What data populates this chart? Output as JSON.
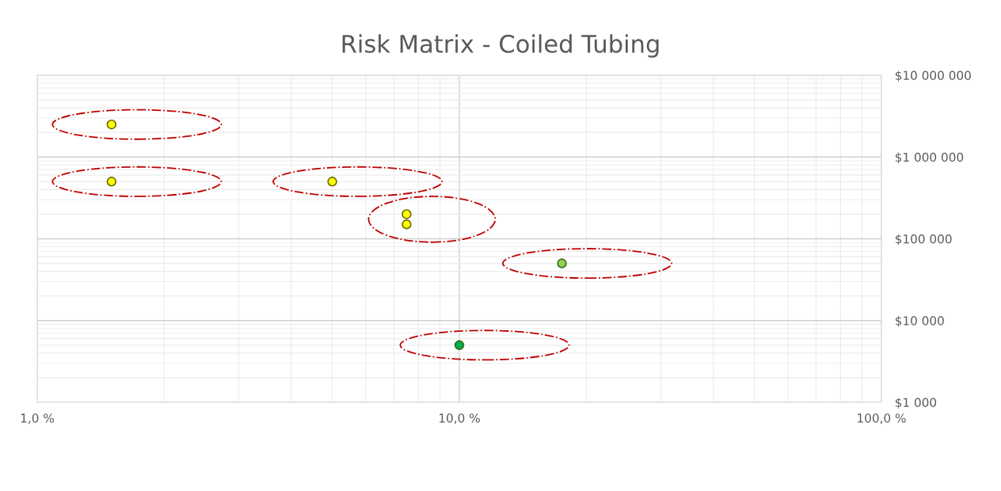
{
  "chart_data": {
    "type": "scatter",
    "title": "Risk Matrix - Coiled Tubing",
    "series": [
      {
        "x": [
          1.5,
          1.5,
          5,
          7.5,
          7.5
        ],
        "values": [
          2500000,
          500000,
          500000,
          200000,
          150000
        ],
        "color": "#ffff00"
      },
      {
        "x": [
          17.5
        ],
        "values": [
          50000
        ],
        "color": "#92d050"
      },
      {
        "x": [
          10
        ],
        "values": [
          5000
        ],
        "color": "#00b050"
      }
    ],
    "log": "xy",
    "xlim": [
      1,
      100
    ],
    "xticks": [
      {
        "value": 1,
        "label": "1,0 %"
      },
      {
        "value": 10,
        "label": "10,0 %"
      },
      {
        "value": 100,
        "label": "100,0 %"
      }
    ],
    "ylim": [
      1000,
      10000000
    ],
    "yticks": [
      {
        "value": 1000,
        "label": "$1 000"
      },
      {
        "value": 10000,
        "label": "$10 000"
      },
      {
        "value": 100000,
        "label": "$100 000"
      },
      {
        "value": 1000000,
        "label": "$1 000 000"
      },
      {
        "value": 10000000,
        "label": "$10 000 000"
      }
    ],
    "grid": true,
    "marker": "circle"
  }
}
